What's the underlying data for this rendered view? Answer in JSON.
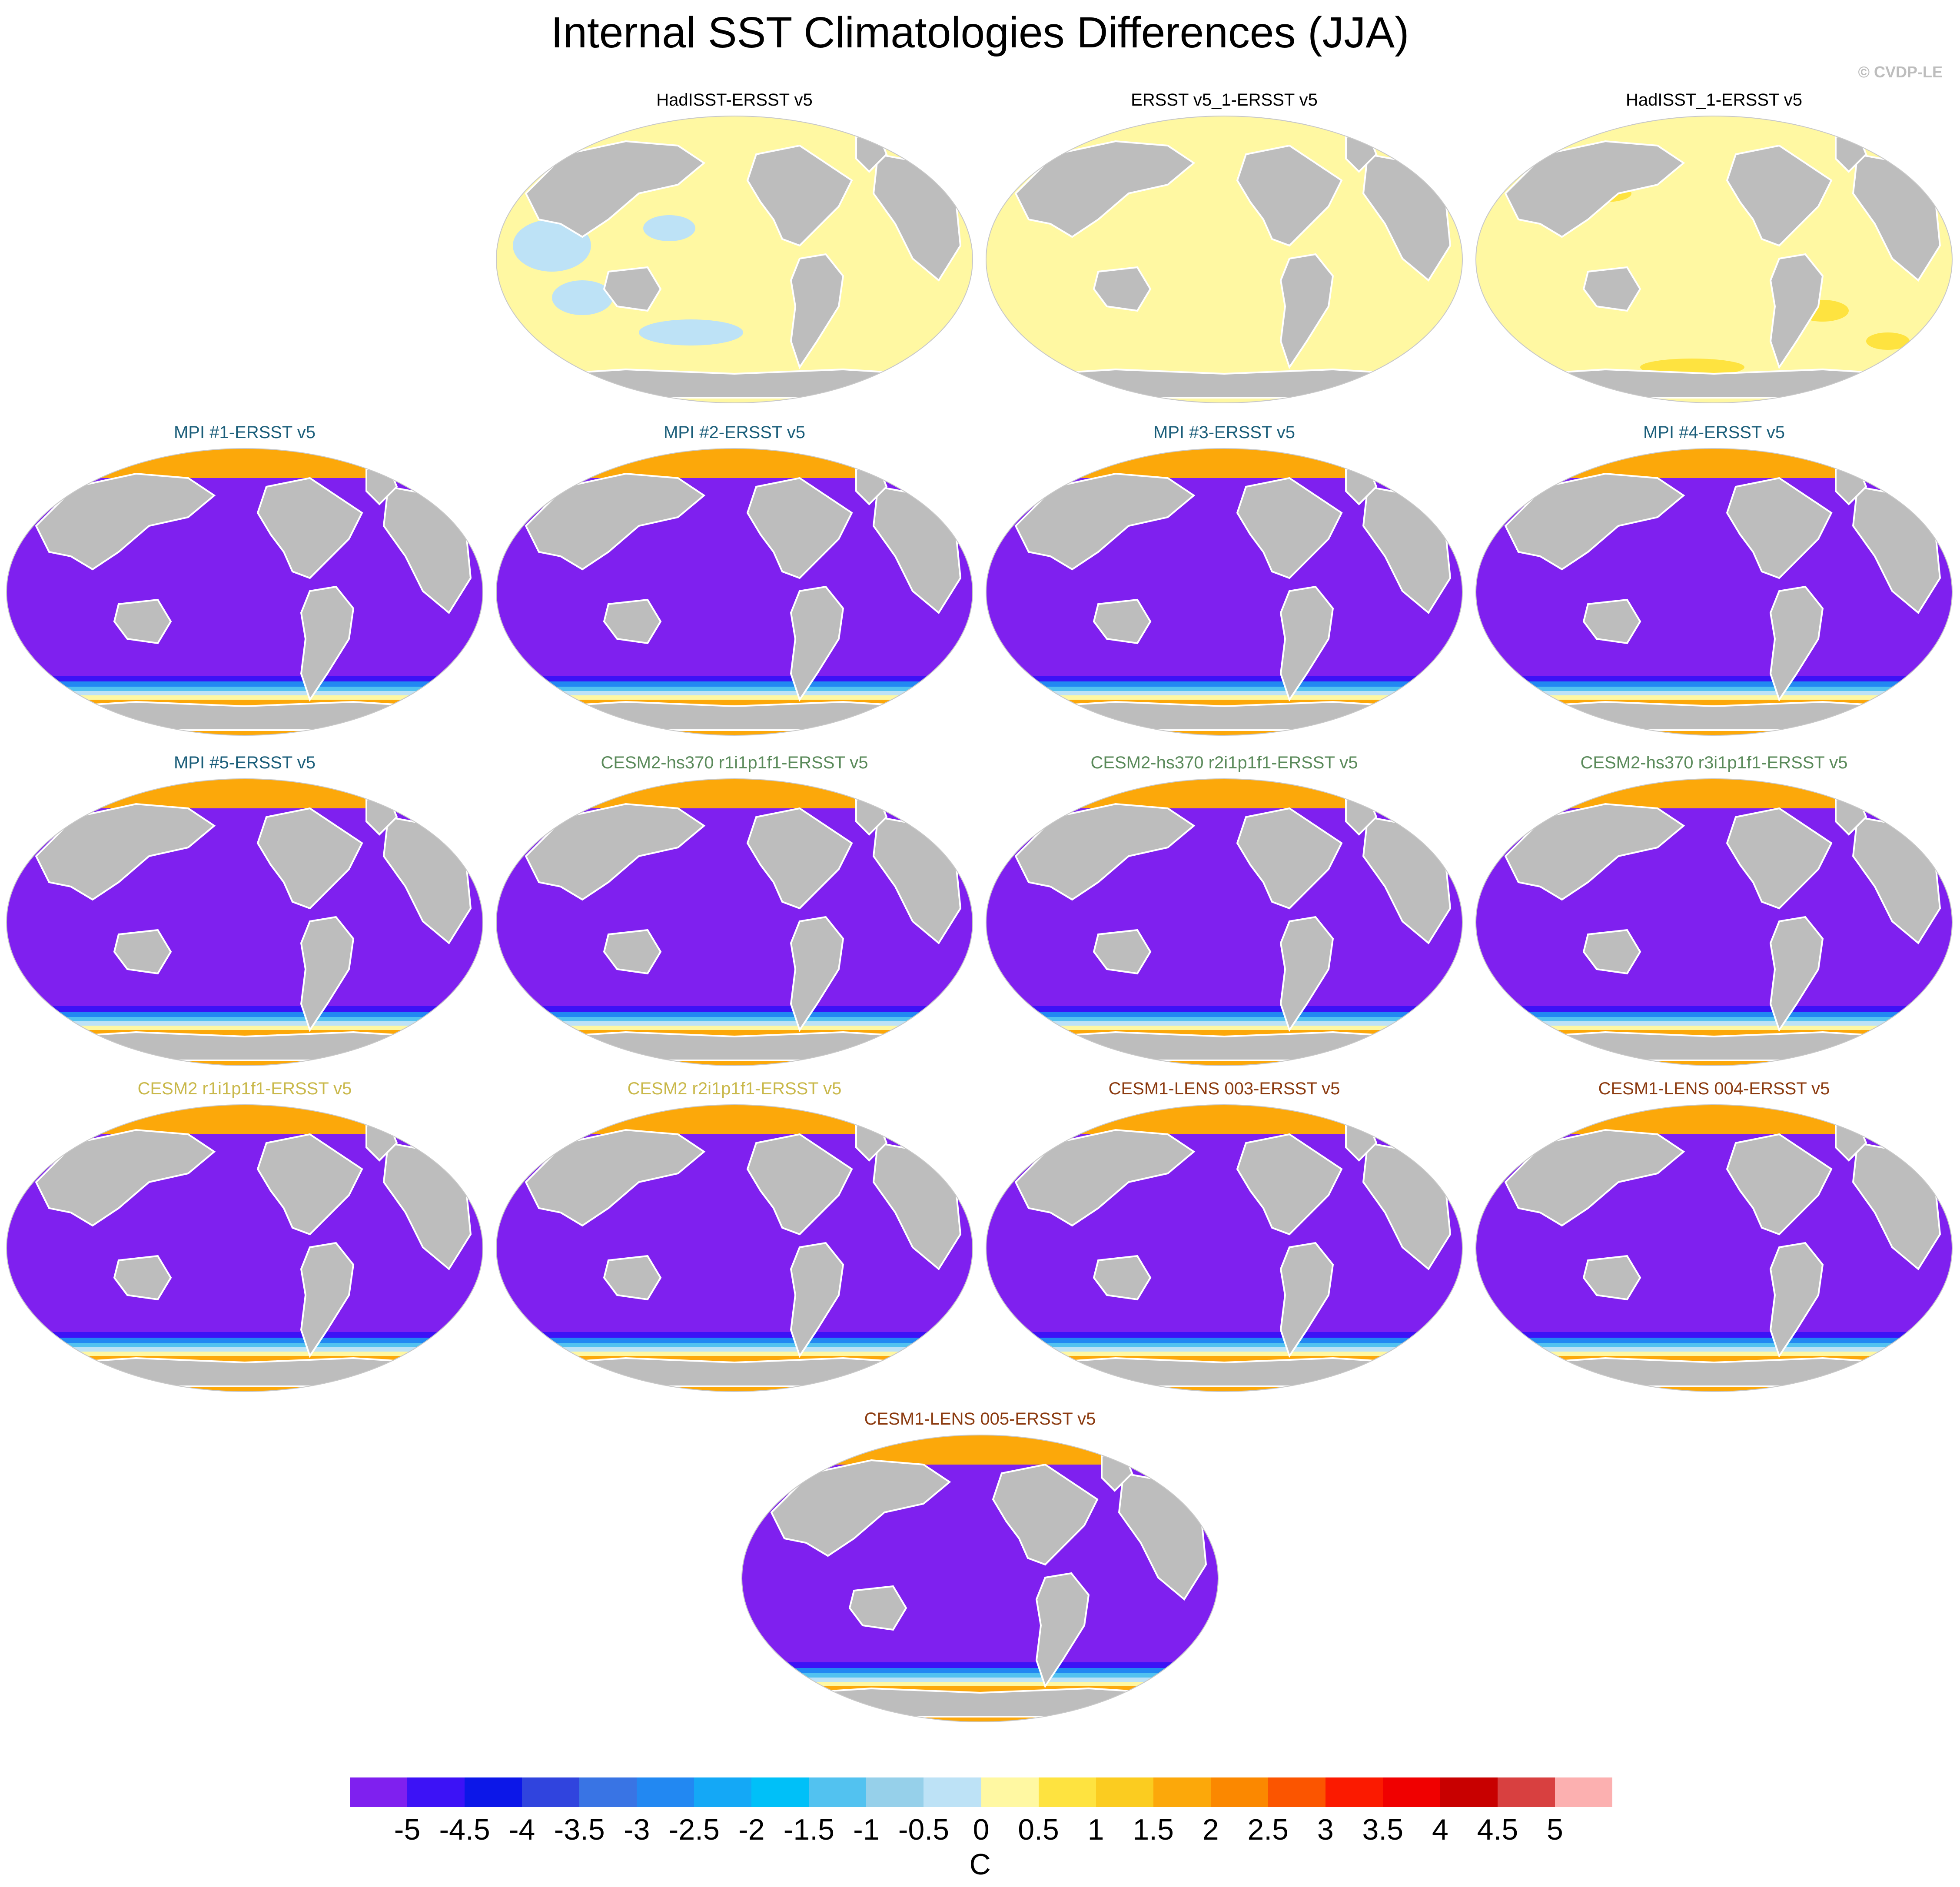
{
  "title": "Internal SST Climatologies Differences (JJA)",
  "copyright": "© CVDP-LE",
  "panels": [
    {
      "title": "HadISST-ERSST v5",
      "title_color": "#000000",
      "pattern": "obs"
    },
    {
      "title": "ERSST v5_1-ERSST v5",
      "title_color": "#000000",
      "pattern": "obs-uniform"
    },
    {
      "title": "HadISST_1-ERSST v5",
      "title_color": "#000000",
      "pattern": "obs-warm"
    },
    {
      "title": "MPI #1-ERSST v5",
      "title_color": "#1b5e7a",
      "pattern": "model"
    },
    {
      "title": "MPI #2-ERSST v5",
      "title_color": "#1b5e7a",
      "pattern": "model"
    },
    {
      "title": "MPI #3-ERSST v5",
      "title_color": "#1b5e7a",
      "pattern": "model"
    },
    {
      "title": "MPI #4-ERSST v5",
      "title_color": "#1b5e7a",
      "pattern": "model"
    },
    {
      "title": "MPI #5-ERSST v5",
      "title_color": "#1b5e7a",
      "pattern": "model"
    },
    {
      "title": "CESM2-hs370 r1i1p1f1-ERSST v5",
      "title_color": "#5a8a5a",
      "pattern": "model"
    },
    {
      "title": "CESM2-hs370 r2i1p1f1-ERSST v5",
      "title_color": "#5a8a5a",
      "pattern": "model"
    },
    {
      "title": "CESM2-hs370 r3i1p1f1-ERSST v5",
      "title_color": "#5a8a5a",
      "pattern": "model"
    },
    {
      "title": "CESM2 r1i1p1f1-ERSST v5",
      "title_color": "#c9b84a",
      "pattern": "model"
    },
    {
      "title": "CESM2 r2i1p1f1-ERSST v5",
      "title_color": "#c9b84a",
      "pattern": "model"
    },
    {
      "title": "CESM1-LENS 003-ERSST v5",
      "title_color": "#8b3a0f",
      "pattern": "model"
    },
    {
      "title": "CESM1-LENS 004-ERSST v5",
      "title_color": "#8b3a0f",
      "pattern": "model"
    },
    {
      "title": "CESM1-LENS 005-ERSST v5",
      "title_color": "#8b3a0f",
      "pattern": "model"
    }
  ],
  "colorbar": {
    "colors": [
      "#7f20ef",
      "#3c12f6",
      "#0c17e8",
      "#3044de",
      "#3974e4",
      "#2288f2",
      "#14a8f6",
      "#00c0f8",
      "#52c2f0",
      "#96d0ea",
      "#bde2f6",
      "#fff8a2",
      "#fee340",
      "#fbcc20",
      "#fca80a",
      "#fb8800",
      "#fb5500",
      "#fb1a00",
      "#f00000",
      "#c80000",
      "#d84040",
      "#fcb0b0"
    ],
    "tick_labels": [
      "-5",
      "-4.5",
      "-4",
      "-3.5",
      "-3",
      "-2.5",
      "-2",
      "-1.5",
      "-1",
      "-0.5",
      "0",
      "0.5",
      "1",
      "1.5",
      "2",
      "2.5",
      "3",
      "3.5",
      "4",
      "4.5",
      "5"
    ],
    "units": "C"
  },
  "colors": {
    "land": "#bdbdbd",
    "ocean_model": "#7f20ef",
    "ocean_obs": "#fff8a2",
    "warm_band": "#fca80a",
    "cool_patch": "#bde2f6",
    "title_text": "#000000"
  }
}
